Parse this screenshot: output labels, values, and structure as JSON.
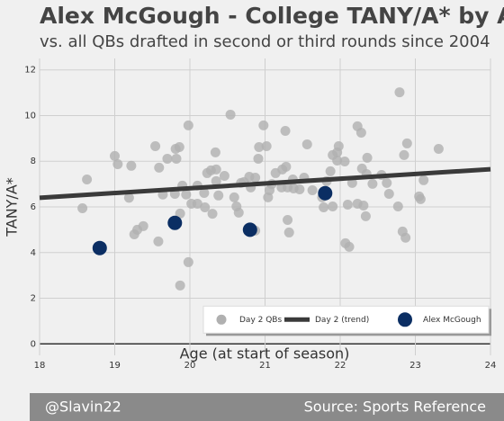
{
  "chart_data": {
    "type": "scatter",
    "title": "Alex McGough - College TANY/A* by Age",
    "subtitle": "vs. all QBs drafted in second or third rounds since 2004",
    "x_label": "Age (at start of season)",
    "y_label": "TANY/A*",
    "footer_left": "@Slavin22",
    "footer_right": "Source: Sports Reference",
    "xlim": [
      18,
      24
    ],
    "ylim": [
      -0.5,
      12.5
    ],
    "xticks": [
      18,
      19,
      20,
      21,
      22,
      23,
      24
    ],
    "yticks": [
      0,
      2,
      4,
      6,
      8,
      10,
      12
    ],
    "grid": true,
    "legend": "lower right",
    "series": [
      {
        "name": "Day 2 QBs",
        "type": "scatter",
        "color": "#b0b0b0",
        "x": [
          18.57,
          18.63,
          19.0,
          19.04,
          19.22,
          19.19,
          19.26,
          19.3,
          19.38,
          19.54,
          19.58,
          19.59,
          19.64,
          19.7,
          19.81,
          19.82,
          19.8,
          19.86,
          19.87,
          19.9,
          19.95,
          19.98,
          19.98,
          19.87,
          20.02,
          20.1,
          20.1,
          20.19,
          20.2,
          20.23,
          20.28,
          20.34,
          20.35,
          20.35,
          20.38,
          20.3,
          20.46,
          20.54,
          20.59,
          20.62,
          20.65,
          20.68,
          20.72,
          20.79,
          20.81,
          20.87,
          20.87,
          20.91,
          20.92,
          20.98,
          21.02,
          21.04,
          21.06,
          21.09,
          21.14,
          21.22,
          21.23,
          21.27,
          21.28,
          21.3,
          21.32,
          21.3,
          21.37,
          21.38,
          21.46,
          21.52,
          21.56,
          21.63,
          21.76,
          21.78,
          21.82,
          21.87,
          21.9,
          21.9,
          21.96,
          21.98,
          21.96,
          22.06,
          22.07,
          22.12,
          22.1,
          22.16,
          22.23,
          22.28,
          22.23,
          22.29,
          22.31,
          22.34,
          22.35,
          22.36,
          22.43,
          22.55,
          22.62,
          22.65,
          22.77,
          22.79,
          22.83,
          22.87,
          22.85,
          22.89,
          23.05,
          23.07,
          23.11,
          23.31
        ],
        "values": [
          5.94,
          7.2,
          8.23,
          7.87,
          7.8,
          6.4,
          4.8,
          5.0,
          5.16,
          8.66,
          4.49,
          7.72,
          6.54,
          8.11,
          8.54,
          8.11,
          6.57,
          8.62,
          5.71,
          6.93,
          6.54,
          9.57,
          3.58,
          2.56,
          6.14,
          6.14,
          6.93,
          6.61,
          5.98,
          7.48,
          7.6,
          8.39,
          7.64,
          7.13,
          6.5,
          5.7,
          7.36,
          10.04,
          6.42,
          6.02,
          5.75,
          7.05,
          7.09,
          7.32,
          6.85,
          7.28,
          4.96,
          8.11,
          8.62,
          9.57,
          8.66,
          6.42,
          6.73,
          7.0,
          7.48,
          6.85,
          7.64,
          9.33,
          7.76,
          5.43,
          4.88,
          6.85,
          7.2,
          6.81,
          6.77,
          7.28,
          8.74,
          6.73,
          6.42,
          5.98,
          7.13,
          7.56,
          6.02,
          8.27,
          8.39,
          8.66,
          8.03,
          7.99,
          4.41,
          4.25,
          6.1,
          7.05,
          9.53,
          9.25,
          6.14,
          7.68,
          6.06,
          5.59,
          7.44,
          8.15,
          7.01,
          7.4,
          7.05,
          6.57,
          6.02,
          11.02,
          4.92,
          4.65,
          8.27,
          8.78,
          6.46,
          6.34,
          7.17,
          8.54
        ]
      },
      {
        "name": "Day 2 (trend)",
        "type": "line",
        "color": "#3a3a3a",
        "x": [
          18,
          24
        ],
        "values": [
          6.4,
          7.65
        ]
      },
      {
        "name": "Alex McGough",
        "type": "scatter",
        "color": "#0b2e63",
        "x": [
          18.8,
          19.8,
          20.8,
          21.8
        ],
        "values": [
          4.2,
          5.3,
          5.0,
          6.6
        ]
      }
    ]
  }
}
